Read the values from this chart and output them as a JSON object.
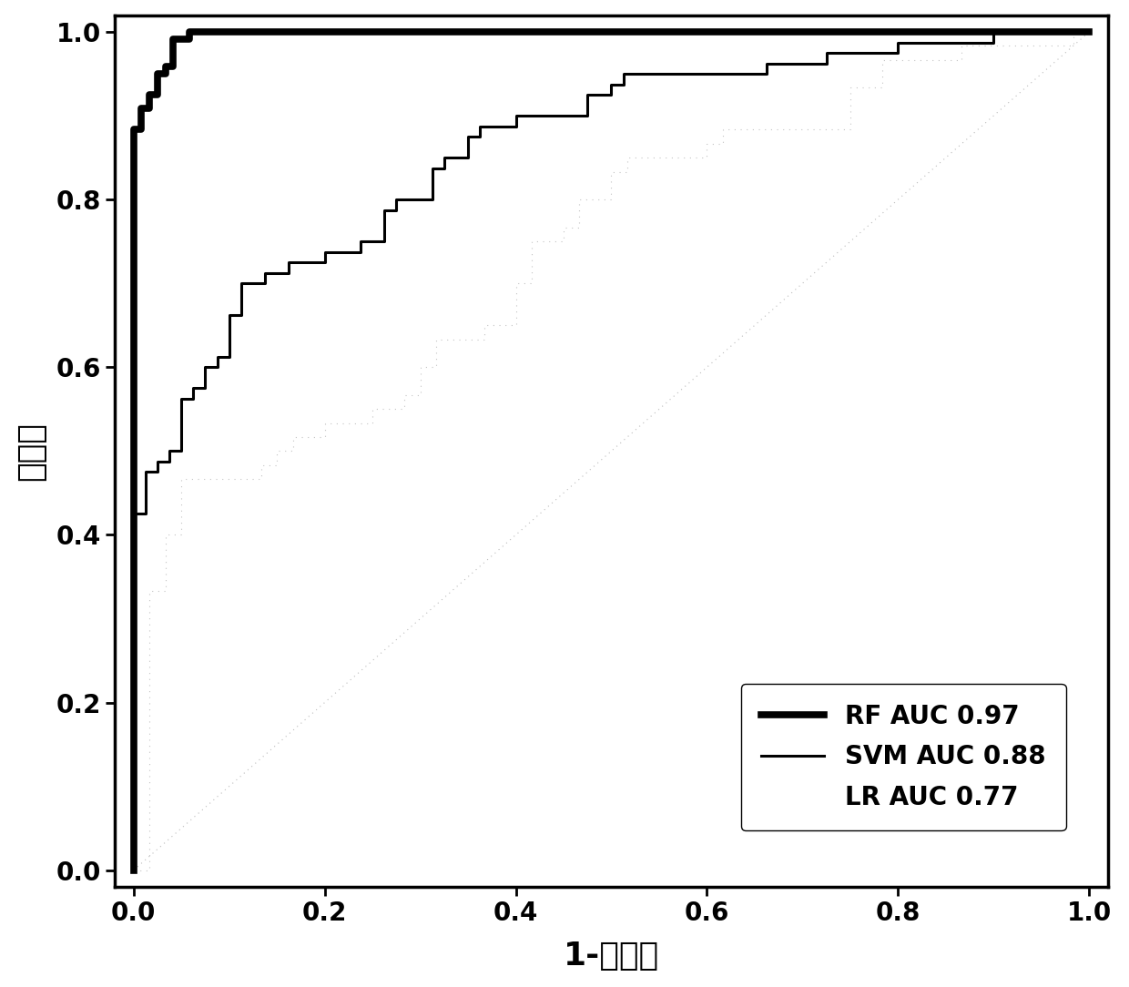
{
  "xlabel": "1-特异性",
  "ylabel": "敏感性",
  "xlim": [
    -0.02,
    1.02
  ],
  "ylim": [
    -0.02,
    1.02
  ],
  "xticks": [
    0.0,
    0.2,
    0.4,
    0.6,
    0.8,
    1.0
  ],
  "yticks": [
    0.0,
    0.2,
    0.4,
    0.6,
    0.8,
    1.0
  ],
  "legend_entries": [
    {
      "label": "RF AUC 0.97",
      "linewidth": 5
    },
    {
      "label": "SVM AUC 0.88",
      "linewidth": 2
    },
    {
      "label": "LR AUC 0.77",
      "linewidth": 0
    }
  ],
  "background_color": "#ffffff",
  "axis_linewidth": 2.5,
  "tick_fontsize": 20,
  "label_fontsize": 26,
  "legend_fontsize": 20
}
